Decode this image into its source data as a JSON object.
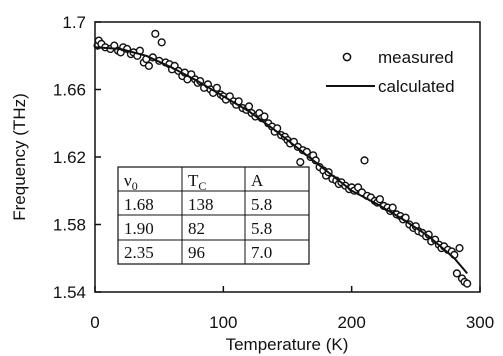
{
  "chart_data": {
    "type": "scatter",
    "xlabel": "Temperature (K)",
    "ylabel": "Frequency (THz)",
    "xlim": [
      0,
      300
    ],
    "ylim": [
      1.54,
      1.7
    ],
    "xticks": [
      0,
      100,
      200,
      300
    ],
    "xtick_labels": [
      "0",
      "100",
      "200",
      "300"
    ],
    "yticks": [
      1.54,
      1.58,
      1.62,
      1.66,
      1.7
    ],
    "ytick_labels": [
      "1.54",
      "1.58",
      "1.62",
      "1.66",
      "1.7"
    ],
    "grid": false,
    "legend_position": "top-right",
    "series": [
      {
        "name": "measured",
        "marker": "open-circle",
        "x": [
          2,
          3,
          5,
          8,
          12,
          15,
          18,
          20,
          22,
          25,
          28,
          30,
          33,
          35,
          38,
          40,
          42,
          45,
          47,
          50,
          52,
          55,
          58,
          60,
          62,
          65,
          68,
          70,
          72,
          75,
          78,
          80,
          82,
          85,
          88,
          90,
          92,
          95,
          98,
          100,
          102,
          105,
          108,
          110,
          112,
          115,
          118,
          120,
          122,
          125,
          128,
          130,
          132,
          135,
          138,
          140,
          142,
          145,
          148,
          150,
          152,
          155,
          158,
          160,
          162,
          165,
          168,
          170,
          172,
          175,
          178,
          180,
          182,
          185,
          188,
          190,
          192,
          195,
          198,
          200,
          202,
          205,
          208,
          210,
          212,
          215,
          218,
          220,
          222,
          225,
          228,
          230,
          232,
          235,
          238,
          240,
          242,
          245,
          248,
          250,
          252,
          255,
          258,
          260,
          262,
          265,
          268,
          270,
          272,
          275,
          278,
          280,
          282,
          284,
          286,
          288,
          290
        ],
        "y": [
          1.686,
          1.689,
          1.687,
          1.685,
          1.684,
          1.686,
          1.683,
          1.682,
          1.685,
          1.684,
          1.681,
          1.682,
          1.68,
          1.683,
          1.676,
          1.678,
          1.674,
          1.679,
          1.693,
          1.677,
          1.688,
          1.676,
          1.675,
          1.672,
          1.674,
          1.671,
          1.668,
          1.67,
          1.666,
          1.669,
          1.666,
          1.664,
          1.665,
          1.661,
          1.663,
          1.66,
          1.658,
          1.661,
          1.657,
          1.656,
          1.654,
          1.656,
          1.653,
          1.651,
          1.653,
          1.649,
          1.648,
          1.65,
          1.646,
          1.644,
          1.646,
          1.643,
          1.644,
          1.64,
          1.638,
          1.635,
          1.637,
          1.633,
          1.632,
          1.63,
          1.628,
          1.629,
          1.626,
          1.617,
          1.624,
          1.623,
          1.62,
          1.621,
          1.618,
          1.614,
          1.612,
          1.609,
          1.611,
          1.607,
          1.606,
          1.604,
          1.605,
          1.603,
          1.601,
          1.602,
          1.6,
          1.602,
          1.599,
          1.618,
          1.597,
          1.596,
          1.594,
          1.593,
          1.595,
          1.591,
          1.59,
          1.588,
          1.59,
          1.586,
          1.585,
          1.583,
          1.584,
          1.58,
          1.578,
          1.579,
          1.576,
          1.575,
          1.573,
          1.574,
          1.57,
          1.571,
          1.568,
          1.566,
          1.567,
          1.565,
          1.564,
          1.562,
          1.551,
          1.566,
          1.548,
          1.546,
          1.545
        ]
      },
      {
        "name": "calculated",
        "marker": "line",
        "x": [
          0,
          20,
          40,
          60,
          80,
          100,
          120,
          140,
          160,
          180,
          200,
          220,
          240,
          260,
          280,
          290
        ],
        "y": [
          1.685,
          1.684,
          1.68,
          1.673,
          1.665,
          1.656,
          1.647,
          1.636,
          1.624,
          1.612,
          1.6,
          1.592,
          1.583,
          1.573,
          1.56,
          1.551
        ]
      }
    ],
    "table": {
      "headers": [
        "ν0",
        "TC",
        "A"
      ],
      "rows": [
        [
          "1.68",
          "138",
          "5.8"
        ],
        [
          "1.90",
          "82",
          "5.8"
        ],
        [
          "2.35",
          "96",
          "7.0"
        ]
      ]
    }
  }
}
